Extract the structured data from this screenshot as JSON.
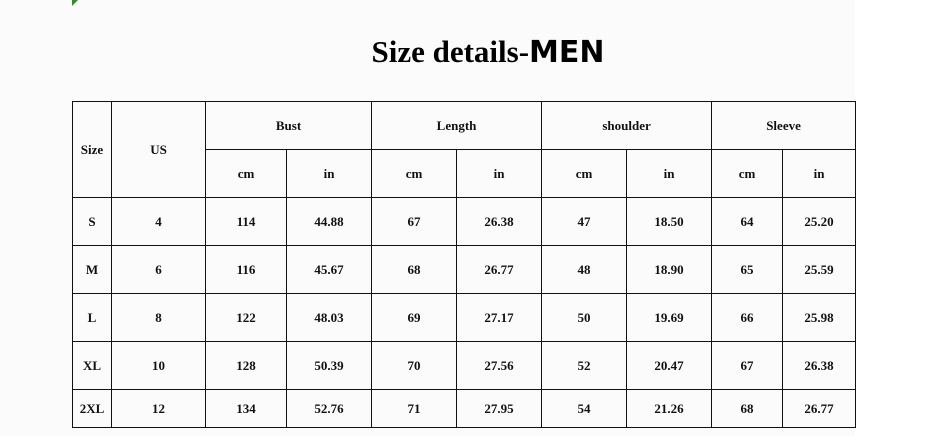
{
  "title": {
    "prefix": "Size details-",
    "emphasis": "MEN"
  },
  "table": {
    "headers": {
      "size": "Size",
      "us": "US",
      "groups": [
        "Bust",
        "Length",
        "shoulder",
        "Sleeve"
      ],
      "units": [
        "cm",
        "in",
        "cm",
        "in",
        "cm",
        "in",
        "cm",
        "in"
      ]
    },
    "rows": [
      [
        "S",
        "4",
        "114",
        "44.88",
        "67",
        "26.38",
        "47",
        "18.50",
        "64",
        "25.20"
      ],
      [
        "M",
        "6",
        "116",
        "45.67",
        "68",
        "26.77",
        "48",
        "18.90",
        "65",
        "25.59"
      ],
      [
        "L",
        "8",
        "122",
        "48.03",
        "69",
        "27.17",
        "50",
        "19.69",
        "66",
        "25.98"
      ],
      [
        "XL",
        "10",
        "128",
        "50.39",
        "70",
        "27.56",
        "52",
        "20.47",
        "67",
        "26.38"
      ],
      [
        "2XL",
        "12",
        "134",
        "52.76",
        "71",
        "27.95",
        "54",
        "21.26",
        "68",
        "26.77"
      ]
    ]
  }
}
